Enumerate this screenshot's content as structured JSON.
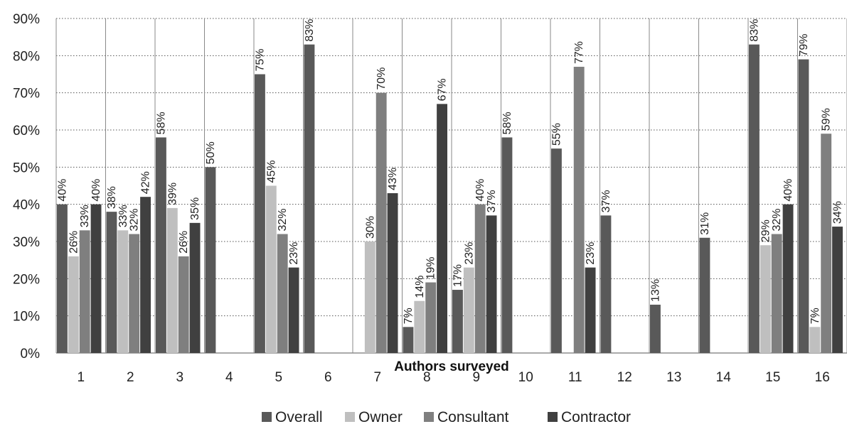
{
  "chart_data": {
    "type": "bar",
    "title": "",
    "xlabel": "Authors surveyed",
    "ylabel": "",
    "ylim": [
      0,
      90
    ],
    "y_ticks": [
      "0%",
      "10%",
      "20%",
      "30%",
      "40%",
      "50%",
      "60%",
      "70%",
      "80%",
      "90%"
    ],
    "categories": [
      "1",
      "2",
      "3",
      "4",
      "5",
      "6",
      "7",
      "8",
      "9",
      "10",
      "11",
      "12",
      "13",
      "14",
      "15",
      "16"
    ],
    "grid": "vertical solid at category boundaries, horizontal dotted",
    "legend_position": "bottom",
    "series": [
      {
        "name": "Overall",
        "color": "#595959",
        "values": [
          40,
          38,
          58,
          50,
          75,
          83,
          null,
          7,
          17,
          58,
          55,
          37,
          13,
          31,
          83,
          79
        ],
        "labels": [
          "40%",
          "38%",
          "58%",
          "50%",
          "75%",
          "83%",
          "",
          "7%",
          "17%",
          "58%",
          "55%",
          "37%",
          "13%",
          "31%",
          "83%",
          "79%"
        ]
      },
      {
        "name": "Owner",
        "color": "#bfbfbf",
        "values": [
          26,
          33,
          39,
          null,
          45,
          null,
          30,
          14,
          23,
          null,
          null,
          null,
          null,
          null,
          29,
          7
        ],
        "labels": [
          "26%",
          "33%",
          "39%",
          "",
          "45%",
          "",
          "30%",
          "14%",
          "23%",
          "",
          "",
          "",
          "",
          "",
          "29%",
          "7%"
        ]
      },
      {
        "name": "Consultant",
        "color": "#7f7f7f",
        "values": [
          33,
          32,
          26,
          null,
          32,
          null,
          70,
          19,
          40,
          null,
          77,
          null,
          null,
          null,
          32,
          59
        ],
        "labels": [
          "33%",
          "32%",
          "26%",
          "",
          "32%",
          "",
          "70%",
          "19%",
          "40%",
          "",
          "77%",
          "",
          "",
          "",
          "32%",
          "59%"
        ]
      },
      {
        "name": "Contractor",
        "color": "#404040",
        "values": [
          40,
          42,
          35,
          null,
          23,
          null,
          43,
          67,
          37,
          null,
          23,
          null,
          null,
          null,
          40,
          34
        ],
        "labels": [
          "40%",
          "42%",
          "35%",
          "",
          "23%",
          "",
          "43%",
          "67%",
          "37%",
          "",
          "23%",
          "",
          "",
          "",
          "40%",
          "34%"
        ]
      }
    ]
  }
}
